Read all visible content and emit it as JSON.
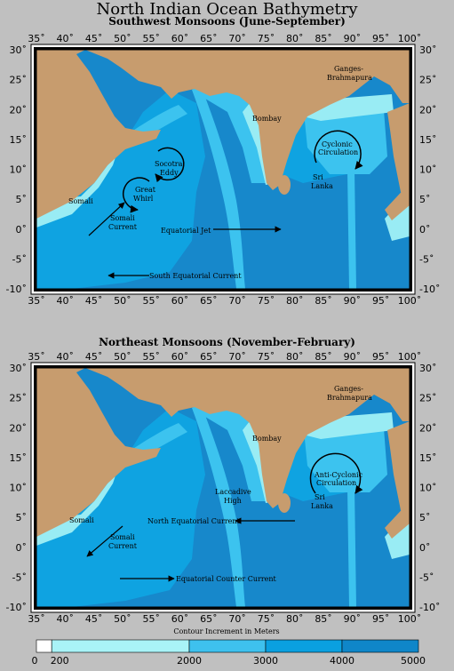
{
  "title": "North Indian Ocean Bathymetry",
  "lon_ticks": [
    "35˚",
    "40˚",
    "45˚",
    "50˚",
    "55˚",
    "60˚",
    "65˚",
    "70˚",
    "75˚",
    "80˚",
    "85˚",
    "90˚",
    "95˚",
    "100˚"
  ],
  "lat_ticks": [
    "30˚",
    "25˚",
    "20˚",
    "15˚",
    "10˚",
    "5˚",
    "0˚",
    "-5˚",
    "-10˚"
  ],
  "top_map": {
    "subtitle": "Southwest Monsoons (June-September)",
    "labels": {
      "ganges": "Ganges-",
      "brahmapura": "Brahmapura",
      "bombay": "Bombay",
      "socotra": "Socotra",
      "eddy": "Eddy",
      "cyclonic": "Cyclonic",
      "circulation": "Circulation",
      "great": "Great",
      "whirl": "Whirl",
      "somali": "Somali",
      "sri": "Sri",
      "lanka": "Lanka",
      "somali_current_1": "Somali",
      "somali_current_2": "Current",
      "equatorial_jet": "Equatorial Jet",
      "south_equatorial": "South Equatorial Current"
    }
  },
  "bottom_map": {
    "subtitle": "Northeast Monsoons (November-February)",
    "labels": {
      "ganges": "Ganges-",
      "brahmapura": "Brahmapura",
      "bombay": "Bombay",
      "anticyclonic": "Anti-Cyclonic",
      "circulation": "Circulation",
      "laccadive": "Laccadive",
      "high": "High",
      "sri": "Sri",
      "lanka": "Lanka",
      "somali": "Somali",
      "somali_current_1": "Somali",
      "somali_current_2": "Current",
      "north_equatorial": "North Equatorial Current",
      "equatorial_counter": "Equatorial Counter Current"
    }
  },
  "legend": {
    "caption": "Contour Increment in Meters",
    "labels": [
      "0",
      "200",
      "2000",
      "3000",
      "4000",
      "5000"
    ],
    "colors": [
      "#ffffff",
      "#a9f3f7",
      "#3ec1ee",
      "#0aa0e0",
      "#0f86c9"
    ]
  },
  "colors": {
    "land": "#c79c6e",
    "shelf": "#99ecf4",
    "shallow": "#3cc3ef",
    "mid": "#0fa3e1",
    "deep": "#1788cb"
  }
}
